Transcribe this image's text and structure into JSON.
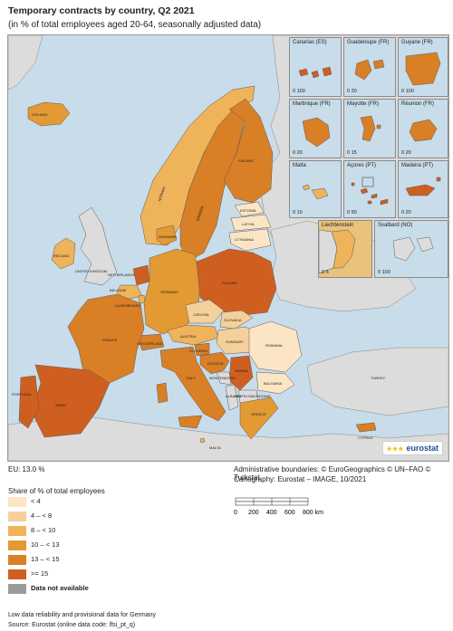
{
  "title": "Temporary contracts by country, Q2 2021",
  "subtitle": "(in % of total employees aged 20-64, seasonally adjusted data)",
  "colors": {
    "sea": "#c8dcea",
    "non_eu_land": "#dcdcdc",
    "lt4": "#fbe5c4",
    "4to8": "#f5d09a",
    "8to10": "#efb35a",
    "10to13": "#e39a33",
    "13to15": "#d97f26",
    "ge15": "#cf5f20",
    "na": "#9b9b9b"
  },
  "countries": [
    {
      "name": "ICELAND",
      "class": "10to13"
    },
    {
      "name": "IRELAND",
      "class": "8to10"
    },
    {
      "name": "UNITED KINGDOM",
      "class": "nonEU"
    },
    {
      "name": "NORWAY",
      "class": "8to10"
    },
    {
      "name": "SWEDEN",
      "class": "13to15"
    },
    {
      "name": "FINLAND",
      "class": "13to15"
    },
    {
      "name": "ESTONIA",
      "class": "lt4"
    },
    {
      "name": "LATVIA",
      "class": "lt4"
    },
    {
      "name": "LITHUANIA",
      "class": "lt4"
    },
    {
      "name": "DENMARK",
      "class": "10to13"
    },
    {
      "name": "NETHERLANDS",
      "class": "ge15"
    },
    {
      "name": "BELGIUM",
      "class": "8to10"
    },
    {
      "name": "LUXEMBOURG",
      "class": "8to10"
    },
    {
      "name": "GERMANY",
      "class": "10to13"
    },
    {
      "name": "POLAND",
      "class": "ge15"
    },
    {
      "name": "CZECHIA",
      "class": "4to8"
    },
    {
      "name": "SLOVAKIA",
      "class": "4to8"
    },
    {
      "name": "AUSTRIA",
      "class": "8to10"
    },
    {
      "name": "HUNGARY",
      "class": "4to8"
    },
    {
      "name": "ROMANIA",
      "class": "lt4"
    },
    {
      "name": "SWITZERLAND",
      "class": "13to15"
    },
    {
      "name": "FRANCE",
      "class": "13to15"
    },
    {
      "name": "SLOVENIA",
      "class": "13to15"
    },
    {
      "name": "CROATIA",
      "class": "13to15"
    },
    {
      "name": "SERBIA",
      "class": "ge15"
    },
    {
      "name": "BULGARIA",
      "class": "lt4"
    },
    {
      "name": "MONTENEGRO",
      "class": "nonEU"
    },
    {
      "name": "ALBANIA",
      "class": "nonEU"
    },
    {
      "name": "NORTH MACEDONIA",
      "class": "nonEU"
    },
    {
      "name": "GREECE",
      "class": "10to13"
    },
    {
      "name": "ITALY",
      "class": "13to15"
    },
    {
      "name": "SPAIN",
      "class": "ge15"
    },
    {
      "name": "PORTUGAL",
      "class": "ge15"
    },
    {
      "name": "TURKEY",
      "class": "nonEU"
    },
    {
      "name": "CYPRUS",
      "class": "13to15"
    },
    {
      "name": "MALTA",
      "class": "8to10"
    }
  ],
  "insets": [
    {
      "name": "Canarias (ES)",
      "scale": "0 100",
      "class": "ge15"
    },
    {
      "name": "Guadeloupe (FR)",
      "scale": "0 20",
      "class": "13to15"
    },
    {
      "name": "Guyane (FR)",
      "scale": "0 100",
      "class": "13to15"
    },
    {
      "name": "Martinique (FR)",
      "scale": "0 20",
      "class": "13to15"
    },
    {
      "name": "Mayotte (FR)",
      "scale": "0 15",
      "class": "13to15"
    },
    {
      "name": "Réunion (FR)",
      "scale": "0 20",
      "class": "13to15"
    },
    {
      "name": "Malta",
      "scale": "0 10",
      "class": "8to10"
    },
    {
      "name": "Açores (PT)",
      "scale": "0 50",
      "class": "ge15"
    },
    {
      "name": "Madeira (PT)",
      "scale": "0 20",
      "class": "ge15"
    },
    {
      "name": "Liechtenstein",
      "scale": "0 5",
      "class": "8to10"
    },
    {
      "name": "Svalbard (NO)",
      "scale": "0 100",
      "class": "nonEU"
    }
  ],
  "logo": "eurostat",
  "eu_value": "EU: 13.0 %",
  "admin_boundaries": "Administrative boundaries: © EuroGeographics © UN–FAO © Turkstat",
  "cartography": "Cartography: Eurostat – IMAGE, 10/2021",
  "legend": {
    "title": "Share of % of total employees",
    "items": [
      {
        "label": "< 4",
        "class": "lt4"
      },
      {
        "label": "4 – < 8",
        "class": "4to8"
      },
      {
        "label": "8 – < 10",
        "class": "8to10"
      },
      {
        "label": "10 – < 13",
        "class": "10to13"
      },
      {
        "label": "13 – < 15",
        "class": "13to15"
      },
      {
        "label": ">= 15",
        "class": "ge15"
      },
      {
        "label": "Data not available",
        "class": "na"
      }
    ]
  },
  "scalebar": {
    "ticks": [
      "0",
      "200",
      "400",
      "600",
      "800 km"
    ]
  },
  "footnote": "Low data reliability and provisional data for Germany",
  "source": "Source: Eurostat (online data code: lfsi_pt_q)"
}
